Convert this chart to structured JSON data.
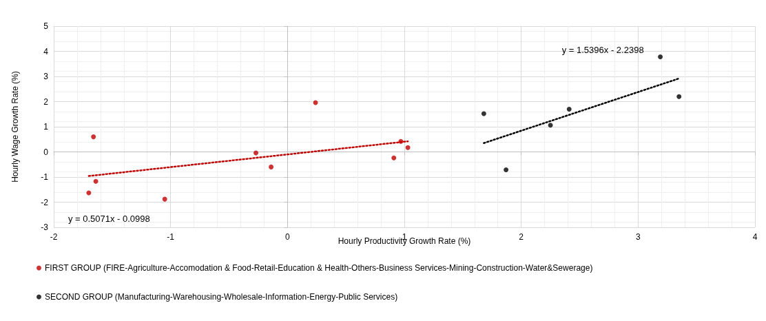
{
  "chart_data": {
    "type": "scatter",
    "xlabel": "Hourly Productivity Growth Rate (%)",
    "ylabel": "Hourly Wage Growth Rate (%)",
    "xlim": [
      -2,
      4
    ],
    "xticks": [
      -2,
      -1,
      0,
      1,
      2,
      3,
      4
    ],
    "ylim": [
      -3,
      5
    ],
    "yticks": [
      -3,
      -2,
      -1,
      0,
      1,
      2,
      3,
      4,
      5
    ],
    "grid": true,
    "legend": "bottom",
    "marker": "circle",
    "series": [
      {
        "name": "FIRST GROUP (FIRE-Agriculture-Accomodation & Food-Retail-Education & Health-Others-Business Services-Mining-Construction-Water&Sewerage)",
        "color": "#c00000",
        "x": [
          -1.66,
          -1.64,
          -1.7,
          -1.05,
          -0.27,
          -0.14,
          0.24,
          0.91,
          0.97,
          1.03
        ],
        "values": [
          0.6,
          -1.17,
          -1.63,
          -1.88,
          -0.04,
          -0.6,
          1.96,
          -0.24,
          0.42,
          0.17
        ]
      },
      {
        "name": "SECOND GROUP (Manufacturing-Warehousing-Wholesale-Information-Energy-Public Services)",
        "color": "#000000",
        "x": [
          1.68,
          1.87,
          2.25,
          2.41,
          3.19,
          3.35
        ],
        "values": [
          1.52,
          -0.71,
          1.06,
          1.7,
          3.78,
          2.2
        ]
      },
      {
        "type": "line",
        "color": "#c00000",
        "line_style": "dotted",
        "marker": "none",
        "x": [
          -1.7,
          1.03
        ],
        "values": [
          -0.96,
          0.42
        ]
      },
      {
        "type": "line",
        "color": "#000000",
        "line_style": "dotted",
        "marker": "none",
        "x": [
          1.68,
          3.35
        ],
        "values": [
          0.35,
          2.92
        ]
      }
    ],
    "annotations": [
      "y = 0.5071x - 0.0998",
      "y = 1.5396x - 2.2398"
    ]
  }
}
